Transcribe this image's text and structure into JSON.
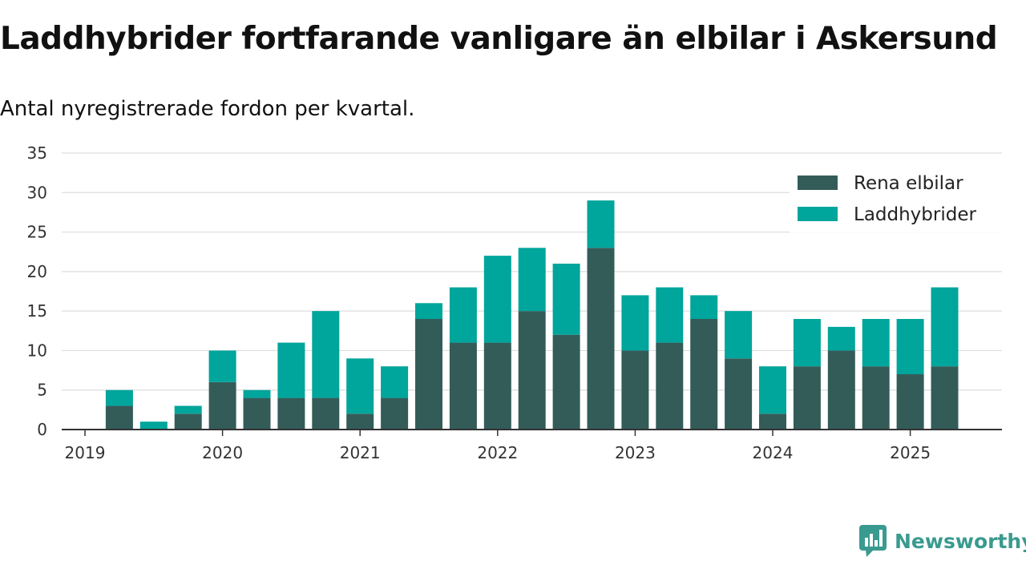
{
  "title": "Laddhybrider fortfarande vanligare än elbilar i Askersund",
  "subtitle": "Antal nyregistrerade fordon per kvartal.",
  "brand": {
    "name": "Newsworthy",
    "icon": "bar-chart-speech-bubble-icon"
  },
  "colors": {
    "rena_elbilar": "#335c59",
    "laddhybrider": "#00a59b",
    "grid": "#dddddd",
    "axis": "#333333"
  },
  "chart_data": {
    "type": "bar",
    "stacked": true,
    "categories": [
      "2019 Q1",
      "2019 Q2",
      "2019 Q3",
      "2019 Q4",
      "2020 Q1",
      "2020 Q2",
      "2020 Q3",
      "2020 Q4",
      "2021 Q1",
      "2021 Q2",
      "2021 Q3",
      "2021 Q4",
      "2022 Q1",
      "2022 Q2",
      "2022 Q3",
      "2022 Q4",
      "2023 Q1",
      "2023 Q2",
      "2023 Q3",
      "2023 Q4",
      "2024 Q1",
      "2024 Q2",
      "2024 Q3",
      "2024 Q4",
      "2025 Q1",
      "2025 Q2"
    ],
    "series": [
      {
        "name": "Rena elbilar",
        "values": [
          0,
          3,
          0,
          2,
          6,
          4,
          4,
          4,
          2,
          4,
          14,
          11,
          11,
          15,
          12,
          23,
          10,
          11,
          14,
          9,
          2,
          8,
          10,
          8,
          7,
          8
        ]
      },
      {
        "name": "Laddhybrider",
        "values": [
          0,
          2,
          1,
          1,
          4,
          1,
          7,
          11,
          7,
          4,
          2,
          7,
          11,
          8,
          9,
          6,
          7,
          7,
          3,
          6,
          6,
          6,
          3,
          6,
          7,
          10
        ]
      }
    ],
    "x_tick_labels": [
      "2019",
      "2020",
      "2021",
      "2022",
      "2023",
      "2024",
      "2025"
    ],
    "y_ticks": [
      0,
      5,
      10,
      15,
      20,
      25,
      30,
      35
    ],
    "ylim": [
      0,
      35
    ],
    "grid": true,
    "legend": "top-right",
    "xlabel": "",
    "ylabel": ""
  }
}
